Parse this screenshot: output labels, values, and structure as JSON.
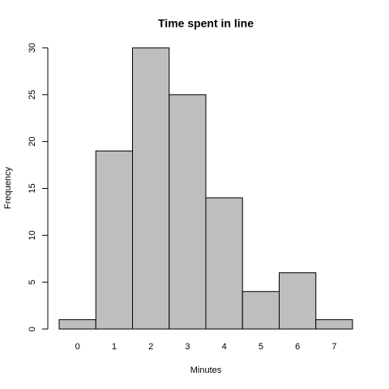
{
  "chart_data": {
    "type": "bar",
    "title": "Time spent in line",
    "xlabel": "Minutes",
    "ylabel": "Frequency",
    "categories": [
      "0",
      "1",
      "2",
      "3",
      "4",
      "5",
      "6",
      "7"
    ],
    "values": [
      1,
      19,
      30,
      25,
      14,
      4,
      6,
      1
    ],
    "color": "#bebebe",
    "ylim": [
      0,
      30
    ],
    "yticks": [
      0,
      5,
      10,
      15,
      20,
      25,
      30
    ]
  }
}
